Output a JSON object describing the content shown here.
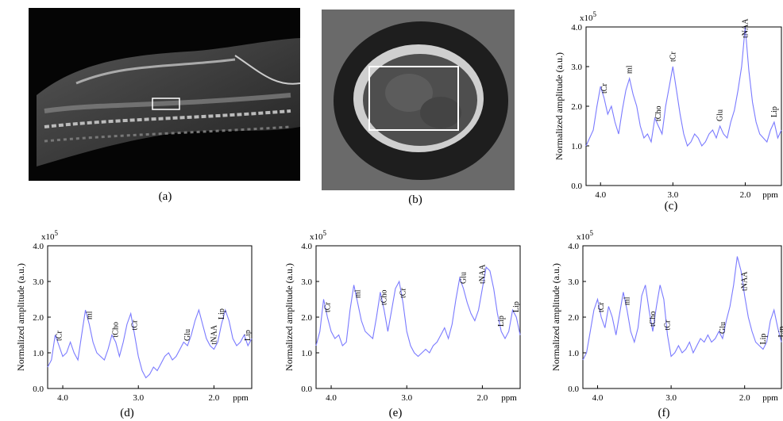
{
  "captions": {
    "a": "(a)",
    "b": "(b)",
    "c": "(c)",
    "d": "(d)",
    "e": "(e)",
    "f": "(f)"
  },
  "axis": {
    "ylabel": "Normalized amplitude (a.u.)",
    "xunit": "ppm",
    "scale": "x10",
    "scale_exp": "5",
    "xticks": [
      "4.0",
      "3.0",
      "2.0"
    ],
    "yticks": [
      "0.0",
      "1.0",
      "2.0",
      "3.0",
      "4.0"
    ]
  },
  "colors": {
    "spectrum": "#7a7aff"
  },
  "chart_data": [
    {
      "panel": "c",
      "type": "line",
      "xlabel": "ppm",
      "ylabel": "Normalized amplitude (a.u.)",
      "xlim": [
        4.2,
        1.5
      ],
      "ylim": [
        0,
        4.0
      ],
      "x": [
        4.2,
        4.1,
        4.05,
        4.0,
        3.95,
        3.9,
        3.85,
        3.8,
        3.75,
        3.7,
        3.65,
        3.6,
        3.55,
        3.5,
        3.45,
        3.4,
        3.35,
        3.3,
        3.25,
        3.2,
        3.15,
        3.1,
        3.05,
        3.0,
        2.95,
        2.9,
        2.85,
        2.8,
        2.75,
        2.7,
        2.65,
        2.6,
        2.55,
        2.5,
        2.45,
        2.4,
        2.35,
        2.3,
        2.25,
        2.2,
        2.15,
        2.1,
        2.05,
        2.0,
        1.95,
        1.9,
        1.85,
        1.8,
        1.75,
        1.7,
        1.65,
        1.6,
        1.55,
        1.5
      ],
      "y": [
        1.0,
        1.4,
        2.0,
        2.5,
        2.2,
        1.8,
        2.0,
        1.6,
        1.3,
        1.9,
        2.4,
        2.7,
        2.3,
        2.0,
        1.5,
        1.2,
        1.3,
        1.1,
        1.7,
        1.5,
        1.3,
        2.0,
        2.5,
        3.0,
        2.4,
        1.8,
        1.3,
        1.0,
        1.1,
        1.3,
        1.2,
        1.0,
        1.1,
        1.3,
        1.4,
        1.2,
        1.5,
        1.3,
        1.2,
        1.6,
        1.9,
        2.4,
        3.0,
        4.0,
        2.9,
        2.1,
        1.6,
        1.3,
        1.2,
        1.1,
        1.4,
        1.6,
        1.2,
        1.4
      ],
      "labels": [
        {
          "text": "tCr",
          "x": 3.95
        },
        {
          "text": "ml",
          "x": 3.6
        },
        {
          "text": "tCho",
          "x": 3.2
        },
        {
          "text": "tCr",
          "x": 3.0
        },
        {
          "text": "Glu",
          "x": 2.35
        },
        {
          "text": "tNAA",
          "x": 2.0
        },
        {
          "text": "Lip",
          "x": 1.6
        },
        {
          "text": "Lip",
          "x": 1.3
        }
      ]
    },
    {
      "panel": "d",
      "type": "line",
      "xlabel": "ppm",
      "ylabel": "Normalized amplitude (a.u.)",
      "xlim": [
        4.2,
        1.5
      ],
      "ylim": [
        0,
        4.0
      ],
      "x": [
        4.2,
        4.15,
        4.1,
        4.05,
        4.0,
        3.95,
        3.9,
        3.85,
        3.8,
        3.75,
        3.7,
        3.65,
        3.6,
        3.55,
        3.5,
        3.45,
        3.4,
        3.35,
        3.3,
        3.25,
        3.2,
        3.15,
        3.1,
        3.05,
        3.0,
        2.95,
        2.9,
        2.85,
        2.8,
        2.75,
        2.7,
        2.65,
        2.6,
        2.55,
        2.5,
        2.45,
        2.4,
        2.35,
        2.3,
        2.25,
        2.2,
        2.15,
        2.1,
        2.05,
        2.0,
        1.95,
        1.9,
        1.85,
        1.8,
        1.75,
        1.7,
        1.65,
        1.6,
        1.55,
        1.5
      ],
      "y": [
        0.6,
        0.8,
        1.5,
        1.2,
        0.9,
        1.0,
        1.3,
        1.0,
        0.8,
        1.5,
        2.2,
        1.8,
        1.3,
        1.0,
        0.9,
        0.8,
        1.1,
        1.5,
        1.3,
        0.9,
        1.3,
        1.8,
        2.1,
        1.5,
        0.9,
        0.5,
        0.3,
        0.4,
        0.6,
        0.5,
        0.7,
        0.9,
        1.0,
        0.8,
        0.9,
        1.1,
        1.3,
        1.2,
        1.5,
        1.9,
        2.2,
        1.8,
        1.4,
        1.2,
        1.1,
        1.3,
        1.8,
        2.2,
        1.9,
        1.4,
        1.2,
        1.3,
        1.5,
        1.2,
        1.4
      ],
      "labels": [
        {
          "text": "tCr",
          "x": 4.05
        },
        {
          "text": "ml",
          "x": 3.65
        },
        {
          "text": "tCho",
          "x": 3.3
        },
        {
          "text": "tCr",
          "x": 3.05
        },
        {
          "text": "Glu",
          "x": 2.35
        },
        {
          "text": "tNAA",
          "x": 2.0
        },
        {
          "text": "Lip",
          "x": 1.9
        },
        {
          "text": "Lip",
          "x": 1.55
        }
      ]
    },
    {
      "panel": "e",
      "type": "line",
      "xlabel": "ppm",
      "ylabel": "Normalized amplitude (a.u.)",
      "xlim": [
        4.2,
        1.5
      ],
      "ylim": [
        0,
        4.0
      ],
      "x": [
        4.2,
        4.15,
        4.1,
        4.05,
        4.0,
        3.95,
        3.9,
        3.85,
        3.8,
        3.75,
        3.7,
        3.65,
        3.6,
        3.55,
        3.5,
        3.45,
        3.4,
        3.35,
        3.3,
        3.25,
        3.2,
        3.15,
        3.1,
        3.05,
        3.0,
        2.95,
        2.9,
        2.85,
        2.8,
        2.75,
        2.7,
        2.65,
        2.6,
        2.55,
        2.5,
        2.45,
        2.4,
        2.35,
        2.3,
        2.25,
        2.2,
        2.15,
        2.1,
        2.05,
        2.0,
        1.95,
        1.9,
        1.85,
        1.8,
        1.75,
        1.7,
        1.65,
        1.6,
        1.55,
        1.5
      ],
      "y": [
        1.2,
        1.6,
        2.5,
        2.0,
        1.6,
        1.4,
        1.5,
        1.2,
        1.3,
        2.2,
        2.9,
        2.4,
        1.9,
        1.6,
        1.5,
        1.4,
        2.0,
        2.7,
        2.2,
        1.6,
        2.2,
        2.8,
        3.0,
        2.4,
        1.6,
        1.2,
        1.0,
        0.9,
        1.0,
        1.1,
        1.0,
        1.2,
        1.3,
        1.5,
        1.7,
        1.4,
        1.8,
        2.5,
        3.1,
        2.8,
        2.4,
        2.1,
        1.9,
        2.2,
        2.8,
        3.4,
        3.3,
        2.8,
        2.1,
        1.6,
        1.4,
        1.6,
        2.2,
        2.0,
        1.5
      ],
      "labels": [
        {
          "text": "tCr",
          "x": 4.05
        },
        {
          "text": "ml",
          "x": 3.65
        },
        {
          "text": "tCho",
          "x": 3.3
        },
        {
          "text": "tCr",
          "x": 3.05
        },
        {
          "text": "Glu",
          "x": 2.25
        },
        {
          "text": "tNAA",
          "x": 2.0
        },
        {
          "text": "Lip",
          "x": 1.75
        },
        {
          "text": "Lip",
          "x": 1.55
        }
      ]
    },
    {
      "panel": "f",
      "type": "line",
      "xlabel": "ppm",
      "ylabel": "Normalized amplitude (a.u.)",
      "xlim": [
        4.2,
        1.5
      ],
      "ylim": [
        0,
        4.0
      ],
      "x": [
        4.2,
        4.15,
        4.1,
        4.05,
        4.0,
        3.95,
        3.9,
        3.85,
        3.8,
        3.75,
        3.7,
        3.65,
        3.6,
        3.55,
        3.5,
        3.45,
        3.4,
        3.35,
        3.3,
        3.25,
        3.2,
        3.15,
        3.1,
        3.05,
        3.0,
        2.95,
        2.9,
        2.85,
        2.8,
        2.75,
        2.7,
        2.65,
        2.6,
        2.55,
        2.5,
        2.45,
        2.4,
        2.35,
        2.3,
        2.25,
        2.2,
        2.15,
        2.1,
        2.05,
        2.0,
        1.95,
        1.9,
        1.85,
        1.8,
        1.75,
        1.7,
        1.65,
        1.6,
        1.55,
        1.5
      ],
      "y": [
        0.8,
        1.0,
        1.6,
        2.2,
        2.5,
        2.0,
        1.7,
        2.3,
        2.0,
        1.5,
        2.1,
        2.7,
        2.2,
        1.6,
        1.3,
        1.7,
        2.6,
        2.9,
        2.2,
        1.6,
        2.3,
        2.9,
        2.5,
        1.5,
        0.9,
        1.0,
        1.2,
        1.0,
        1.1,
        1.3,
        1.0,
        1.2,
        1.4,
        1.3,
        1.5,
        1.3,
        1.4,
        1.6,
        1.4,
        1.9,
        2.3,
        2.9,
        3.7,
        3.3,
        2.6,
        2.0,
        1.6,
        1.3,
        1.2,
        1.1,
        1.3,
        1.9,
        2.2,
        1.7,
        1.3
      ],
      "labels": [
        {
          "text": "tCr",
          "x": 3.95
        },
        {
          "text": "ml",
          "x": 3.6
        },
        {
          "text": "tCho",
          "x": 3.25
        },
        {
          "text": "tCr",
          "x": 3.05
        },
        {
          "text": "Glu",
          "x": 2.3
        },
        {
          "text": "tNAA",
          "x": 2.0
        },
        {
          "text": "Lip",
          "x": 1.75
        },
        {
          "text": "Lip",
          "x": 1.5
        }
      ]
    }
  ]
}
